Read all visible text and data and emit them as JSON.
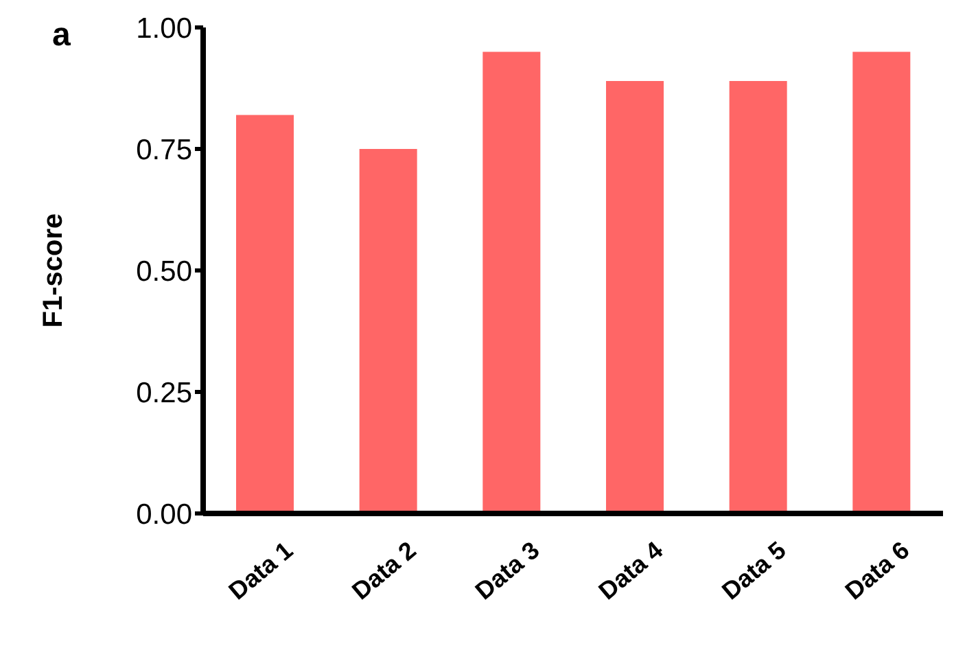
{
  "chart_data": {
    "type": "bar",
    "annotations": [
      "a"
    ],
    "ylabel": "F1-score",
    "categories": [
      "Data 1",
      "Data 2",
      "Data 3",
      "Data 4",
      "Data 5",
      "Data 6"
    ],
    "values": [
      0.82,
      0.75,
      0.95,
      0.89,
      0.89,
      0.95
    ],
    "color": "#ff6666",
    "ylim": [
      0,
      1
    ],
    "yticks": [
      {
        "value": 0,
        "label": "0.00"
      },
      {
        "value": 0.25,
        "label": "0.25"
      },
      {
        "value": 0.5,
        "label": "0.50"
      },
      {
        "value": 0.75,
        "label": "0.75"
      },
      {
        "value": 1,
        "label": "1.00"
      }
    ],
    "grid": false,
    "legend": false
  }
}
